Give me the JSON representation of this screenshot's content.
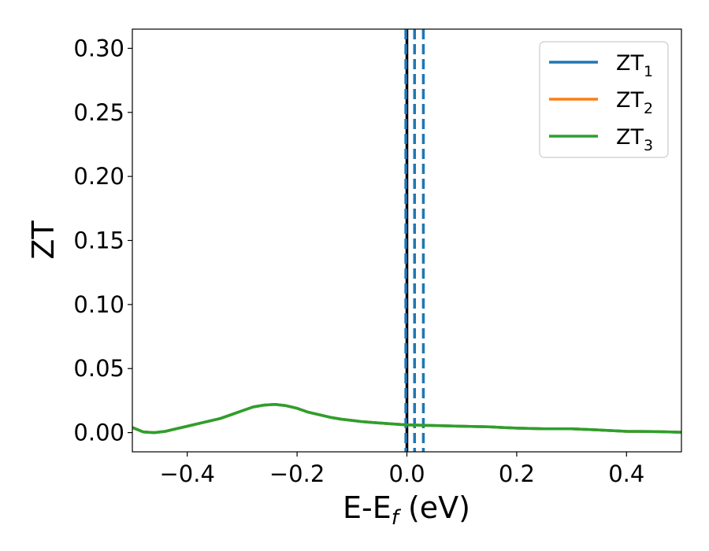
{
  "chart_data": {
    "type": "line",
    "title": "",
    "xlabel": {
      "main": "E-E",
      "sub": "f",
      "suffix": " (eV)"
    },
    "ylabel": "ZT",
    "xlim": [
      -0.5,
      0.5
    ],
    "ylim": [
      -0.015,
      0.315
    ],
    "xticks": [
      -0.4,
      -0.2,
      0.0,
      0.2,
      0.4
    ],
    "xtick_labels": [
      "−0.4",
      "−0.2",
      "0.0",
      "0.2",
      "0.4"
    ],
    "yticks": [
      0.0,
      0.05,
      0.1,
      0.15,
      0.2,
      0.25,
      0.3
    ],
    "ytick_labels": [
      "0.00",
      "0.05",
      "0.10",
      "0.15",
      "0.20",
      "0.25",
      "0.30"
    ],
    "grid": false,
    "legend_position": "top-right",
    "series": [
      {
        "name": {
          "main": "ZT",
          "sub": "1"
        },
        "color": "#1f77b4"
      },
      {
        "name": {
          "main": "ZT",
          "sub": "2"
        },
        "color": "#ff7f0e"
      },
      {
        "name": {
          "main": "ZT",
          "sub": "3"
        },
        "color": "#2ca02c"
      }
    ],
    "x": [
      -0.5,
      -0.48,
      -0.46,
      -0.44,
      -0.42,
      -0.4,
      -0.38,
      -0.36,
      -0.34,
      -0.32,
      -0.3,
      -0.28,
      -0.26,
      -0.24,
      -0.22,
      -0.2,
      -0.18,
      -0.16,
      -0.14,
      -0.12,
      -0.1,
      -0.08,
      -0.06,
      -0.04,
      -0.02,
      0.0,
      0.05,
      0.1,
      0.15,
      0.2,
      0.25,
      0.3,
      0.35,
      0.4,
      0.45,
      0.5
    ],
    "y": [
      0.004,
      0.0005,
      0.0,
      0.001,
      0.003,
      0.005,
      0.007,
      0.009,
      0.011,
      0.014,
      0.017,
      0.02,
      0.0215,
      0.022,
      0.021,
      0.019,
      0.016,
      0.014,
      0.012,
      0.0105,
      0.0095,
      0.0085,
      0.0078,
      0.0072,
      0.0066,
      0.006,
      0.0055,
      0.005,
      0.0045,
      0.0035,
      0.003,
      0.003,
      0.002,
      0.001,
      0.0008,
      0.0003
    ],
    "vertical_lines": [
      {
        "x": 0.0,
        "color": "#000000",
        "style": "solid"
      },
      {
        "x": -0.002,
        "color": "#1f77b4",
        "style": "dashed"
      },
      {
        "x": 0.014,
        "color": "#1f77b4",
        "style": "dashed"
      },
      {
        "x": 0.03,
        "color": "#1f77b4",
        "style": "dashed"
      }
    ]
  }
}
